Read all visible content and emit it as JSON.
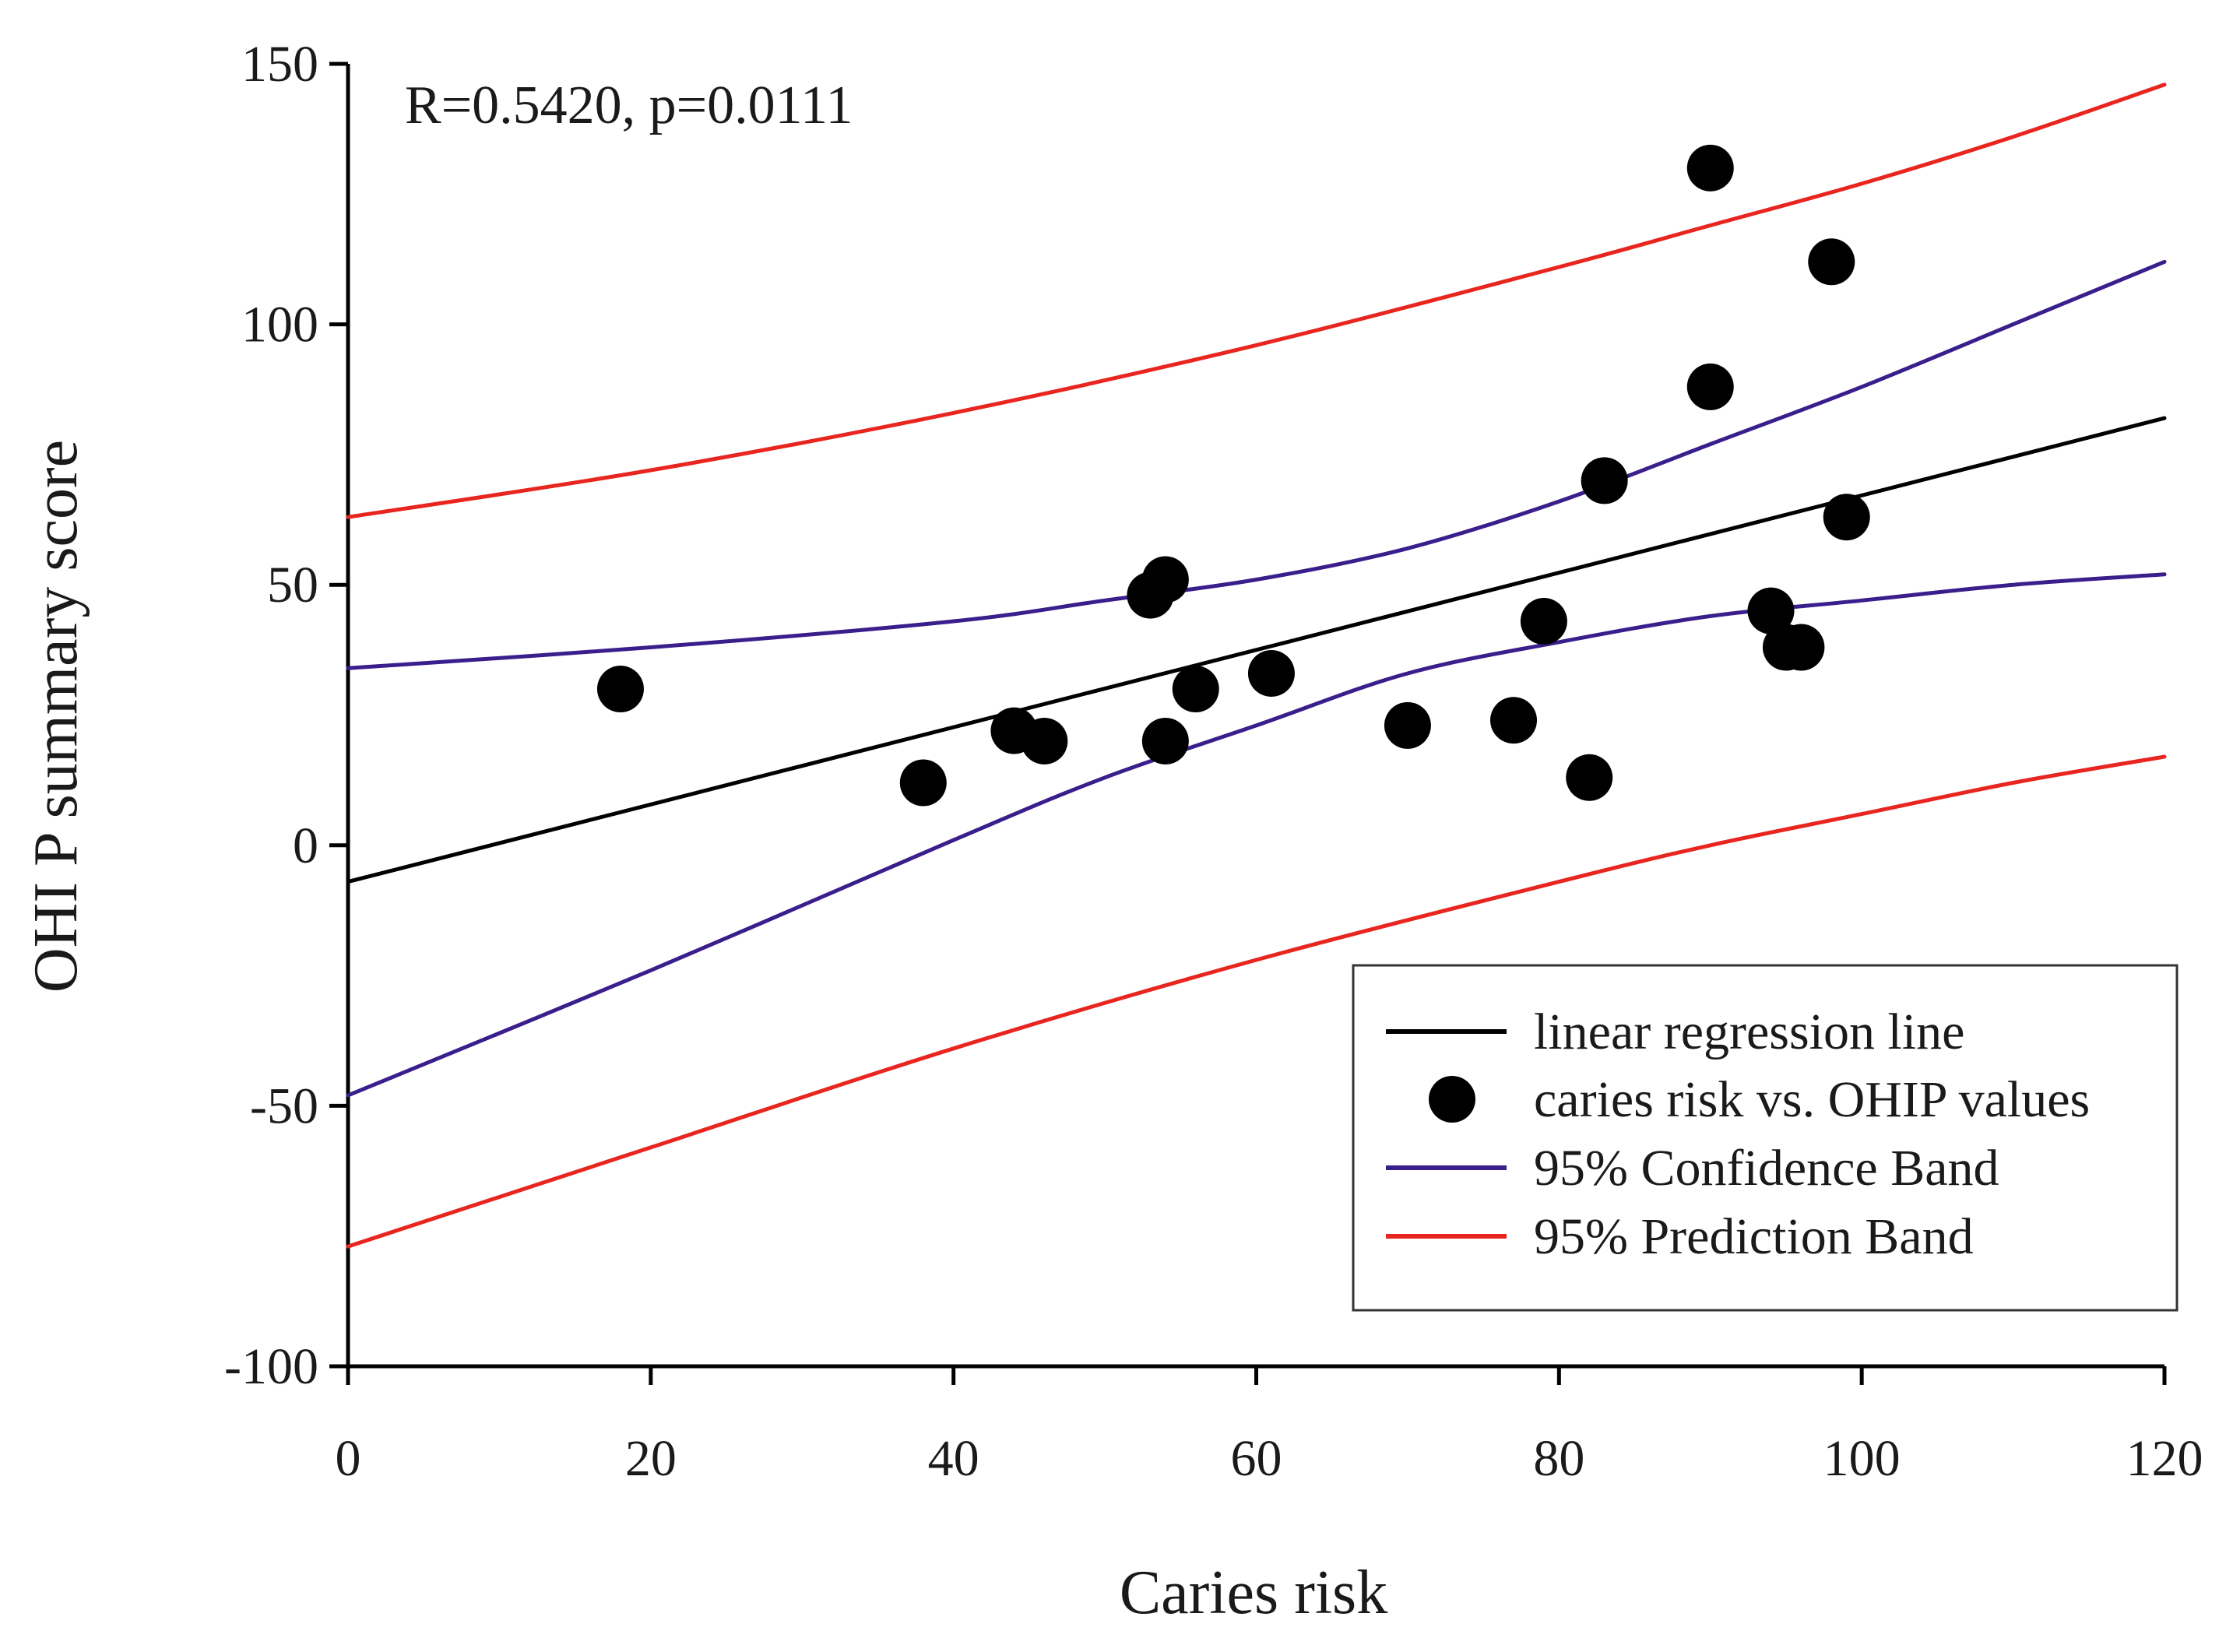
{
  "chart_data": {
    "type": "scatter",
    "title": "",
    "annotation": "R=0.5420, p=0.0111",
    "xlabel": "Caries risk",
    "ylabel": "OHI P summary score",
    "xlim": [
      0,
      120
    ],
    "ylim": [
      -100,
      150
    ],
    "x_ticks": [
      0,
      20,
      40,
      60,
      80,
      100,
      120
    ],
    "y_ticks": [
      -100,
      -50,
      0,
      50,
      100,
      150
    ],
    "grid": false,
    "legend_position": "bottom-right",
    "colors": {
      "regression": "#000000",
      "points": "#000000",
      "confidence": "#3a1e8c",
      "prediction": "#e8251f"
    },
    "legend": [
      {
        "key": "regression",
        "label": "linear regression line",
        "marker": "line"
      },
      {
        "key": "points",
        "label": "caries risk vs. OHIP values",
        "marker": "dot"
      },
      {
        "key": "confidence",
        "label": "95% Confidence Band",
        "marker": "line"
      },
      {
        "key": "prediction",
        "label": "95% Prediction Band",
        "marker": "line"
      }
    ],
    "scatter_points": [
      {
        "x": 18,
        "y": 30
      },
      {
        "x": 38,
        "y": 12
      },
      {
        "x": 44,
        "y": 22
      },
      {
        "x": 46,
        "y": 20
      },
      {
        "x": 53,
        "y": 48
      },
      {
        "x": 54,
        "y": 51
      },
      {
        "x": 54,
        "y": 20
      },
      {
        "x": 56,
        "y": 30
      },
      {
        "x": 61,
        "y": 33
      },
      {
        "x": 70,
        "y": 23
      },
      {
        "x": 77,
        "y": 24
      },
      {
        "x": 79,
        "y": 43
      },
      {
        "x": 82,
        "y": 13
      },
      {
        "x": 83,
        "y": 70
      },
      {
        "x": 90,
        "y": 130
      },
      {
        "x": 90,
        "y": 88
      },
      {
        "x": 94,
        "y": 45
      },
      {
        "x": 95,
        "y": 38
      },
      {
        "x": 96,
        "y": 38
      },
      {
        "x": 98,
        "y": 112
      },
      {
        "x": 99,
        "y": 63
      }
    ],
    "regression_line": [
      {
        "x": 0,
        "y": -7
      },
      {
        "x": 120,
        "y": 82
      }
    ],
    "confidence_upper": [
      {
        "x": 0,
        "y": 34
      },
      {
        "x": 20,
        "y": 38
      },
      {
        "x": 40,
        "y": 43
      },
      {
        "x": 50,
        "y": 47
      },
      {
        "x": 60,
        "y": 51
      },
      {
        "x": 70,
        "y": 57
      },
      {
        "x": 80,
        "y": 66
      },
      {
        "x": 90,
        "y": 77
      },
      {
        "x": 100,
        "y": 88
      },
      {
        "x": 110,
        "y": 100
      },
      {
        "x": 120,
        "y": 112
      }
    ],
    "confidence_lower": [
      {
        "x": 0,
        "y": -48
      },
      {
        "x": 20,
        "y": -24
      },
      {
        "x": 40,
        "y": 1
      },
      {
        "x": 50,
        "y": 13
      },
      {
        "x": 60,
        "y": 23
      },
      {
        "x": 70,
        "y": 33
      },
      {
        "x": 80,
        "y": 39
      },
      {
        "x": 90,
        "y": 44
      },
      {
        "x": 100,
        "y": 47
      },
      {
        "x": 110,
        "y": 50
      },
      {
        "x": 120,
        "y": 52
      }
    ],
    "prediction_upper": [
      {
        "x": 0,
        "y": 63
      },
      {
        "x": 20,
        "y": 72
      },
      {
        "x": 40,
        "y": 83
      },
      {
        "x": 60,
        "y": 96
      },
      {
        "x": 80,
        "y": 111
      },
      {
        "x": 90,
        "y": 119
      },
      {
        "x": 100,
        "y": 127
      },
      {
        "x": 110,
        "y": 136
      },
      {
        "x": 120,
        "y": 146
      }
    ],
    "prediction_lower": [
      {
        "x": 0,
        "y": -77
      },
      {
        "x": 20,
        "y": -58
      },
      {
        "x": 40,
        "y": -39
      },
      {
        "x": 60,
        "y": -22
      },
      {
        "x": 80,
        "y": -7
      },
      {
        "x": 90,
        "y": 0
      },
      {
        "x": 100,
        "y": 6
      },
      {
        "x": 110,
        "y": 12
      },
      {
        "x": 120,
        "y": 17
      }
    ]
  }
}
